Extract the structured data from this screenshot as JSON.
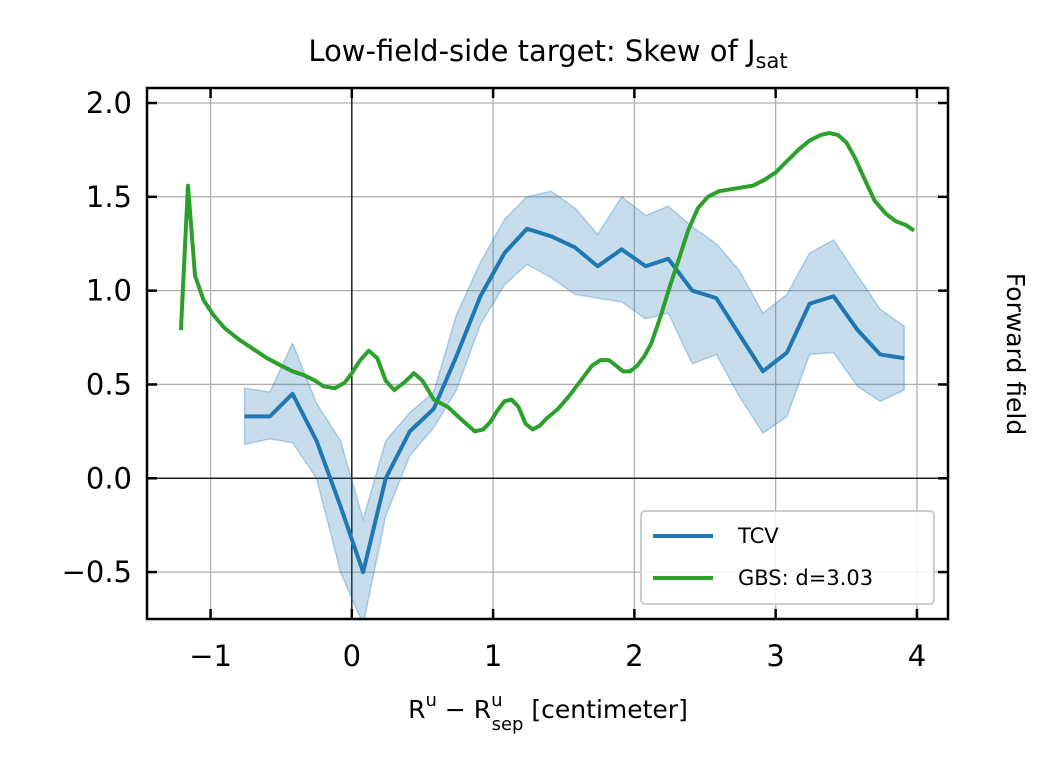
{
  "chart_data": {
    "type": "line",
    "title": "Low-field-side target: Skew of J",
    "title_subscript": "sat",
    "xlabel_parts": {
      "a": "R",
      "a_sup": "u",
      "minus": " − ",
      "b": "R",
      "b_sup": "u",
      "b_sub": "sep",
      "unit": " [centimeter]"
    },
    "right_label": "Forward field",
    "xlim": [
      -1.45,
      4.22
    ],
    "ylim": [
      -0.75,
      2.08
    ],
    "xticks": [
      -1,
      0,
      1,
      2,
      3,
      4
    ],
    "xtick_labels": [
      "−1",
      "0",
      "1",
      "2",
      "3",
      "4"
    ],
    "yticks": [
      -0.5,
      0.0,
      0.5,
      1.0,
      1.5,
      2.0
    ],
    "ytick_labels": [
      "−0.5",
      "0.0",
      "0.5",
      "1.0",
      "1.5",
      "2.0"
    ],
    "grid": true,
    "zero_lines": true,
    "legend_position": "lower right",
    "series": [
      {
        "name": "TCV",
        "color": "#1f77b4",
        "x": [
          -0.76,
          -0.58,
          -0.42,
          -0.25,
          -0.08,
          0.08,
          0.24,
          0.41,
          0.58,
          0.74,
          0.91,
          1.08,
          1.24,
          1.41,
          1.58,
          1.74,
          1.91,
          2.08,
          2.24,
          2.41,
          2.58,
          2.74,
          2.91,
          3.08,
          3.24,
          3.41,
          3.58,
          3.74,
          3.91
        ],
        "y": [
          0.33,
          0.33,
          0.45,
          0.2,
          -0.15,
          -0.5,
          0.0,
          0.25,
          0.37,
          0.65,
          0.97,
          1.2,
          1.33,
          1.29,
          1.23,
          1.13,
          1.22,
          1.13,
          1.17,
          1.0,
          0.96,
          0.77,
          0.57,
          0.67,
          0.93,
          0.97,
          0.79,
          0.66,
          0.64
        ],
        "band_upper": [
          0.48,
          0.46,
          0.72,
          0.4,
          0.2,
          -0.22,
          0.2,
          0.35,
          0.46,
          0.87,
          1.15,
          1.38,
          1.5,
          1.53,
          1.44,
          1.3,
          1.5,
          1.4,
          1.45,
          1.34,
          1.25,
          1.11,
          0.88,
          0.98,
          1.2,
          1.27,
          1.08,
          0.9,
          0.81
        ],
        "band_lower": [
          0.18,
          0.21,
          0.19,
          0.0,
          -0.5,
          -0.78,
          -0.2,
          0.12,
          0.27,
          0.47,
          0.82,
          1.03,
          1.14,
          1.07,
          0.98,
          0.96,
          0.94,
          0.85,
          0.88,
          0.61,
          0.66,
          0.44,
          0.24,
          0.33,
          0.66,
          0.67,
          0.49,
          0.41,
          0.47
        ]
      },
      {
        "name": "GBS: d=3.03",
        "color": "#2ca02c",
        "x": [
          -1.21,
          -1.16,
          -1.11,
          -1.05,
          -0.98,
          -0.9,
          -0.8,
          -0.7,
          -0.6,
          -0.5,
          -0.42,
          -0.34,
          -0.26,
          -0.2,
          -0.12,
          -0.05,
          0.0,
          0.06,
          0.12,
          0.18,
          0.24,
          0.3,
          0.37,
          0.44,
          0.5,
          0.58,
          0.68,
          0.78,
          0.87,
          0.93,
          0.98,
          1.03,
          1.08,
          1.13,
          1.18,
          1.23,
          1.28,
          1.33,
          1.38,
          1.46,
          1.54,
          1.62,
          1.7,
          1.76,
          1.82,
          1.87,
          1.92,
          1.97,
          2.02,
          2.07,
          2.12,
          2.18,
          2.25,
          2.32,
          2.38,
          2.45,
          2.52,
          2.6,
          2.68,
          2.76,
          2.84,
          2.92,
          3.0,
          3.08,
          3.16,
          3.24,
          3.32,
          3.38,
          3.44,
          3.5,
          3.56,
          3.62,
          3.7,
          3.78,
          3.85,
          3.92,
          3.98
        ],
        "y": [
          0.79,
          1.56,
          1.08,
          0.95,
          0.87,
          0.8,
          0.74,
          0.69,
          0.64,
          0.6,
          0.57,
          0.55,
          0.52,
          0.49,
          0.48,
          0.51,
          0.56,
          0.63,
          0.68,
          0.64,
          0.52,
          0.47,
          0.51,
          0.56,
          0.52,
          0.42,
          0.38,
          0.31,
          0.25,
          0.26,
          0.3,
          0.36,
          0.41,
          0.42,
          0.38,
          0.29,
          0.26,
          0.28,
          0.32,
          0.37,
          0.44,
          0.52,
          0.6,
          0.63,
          0.63,
          0.6,
          0.57,
          0.57,
          0.6,
          0.65,
          0.72,
          0.85,
          1.02,
          1.18,
          1.32,
          1.44,
          1.5,
          1.53,
          1.54,
          1.55,
          1.56,
          1.59,
          1.63,
          1.69,
          1.75,
          1.8,
          1.83,
          1.84,
          1.83,
          1.79,
          1.71,
          1.61,
          1.48,
          1.41,
          1.37,
          1.35,
          1.32
        ]
      }
    ]
  }
}
